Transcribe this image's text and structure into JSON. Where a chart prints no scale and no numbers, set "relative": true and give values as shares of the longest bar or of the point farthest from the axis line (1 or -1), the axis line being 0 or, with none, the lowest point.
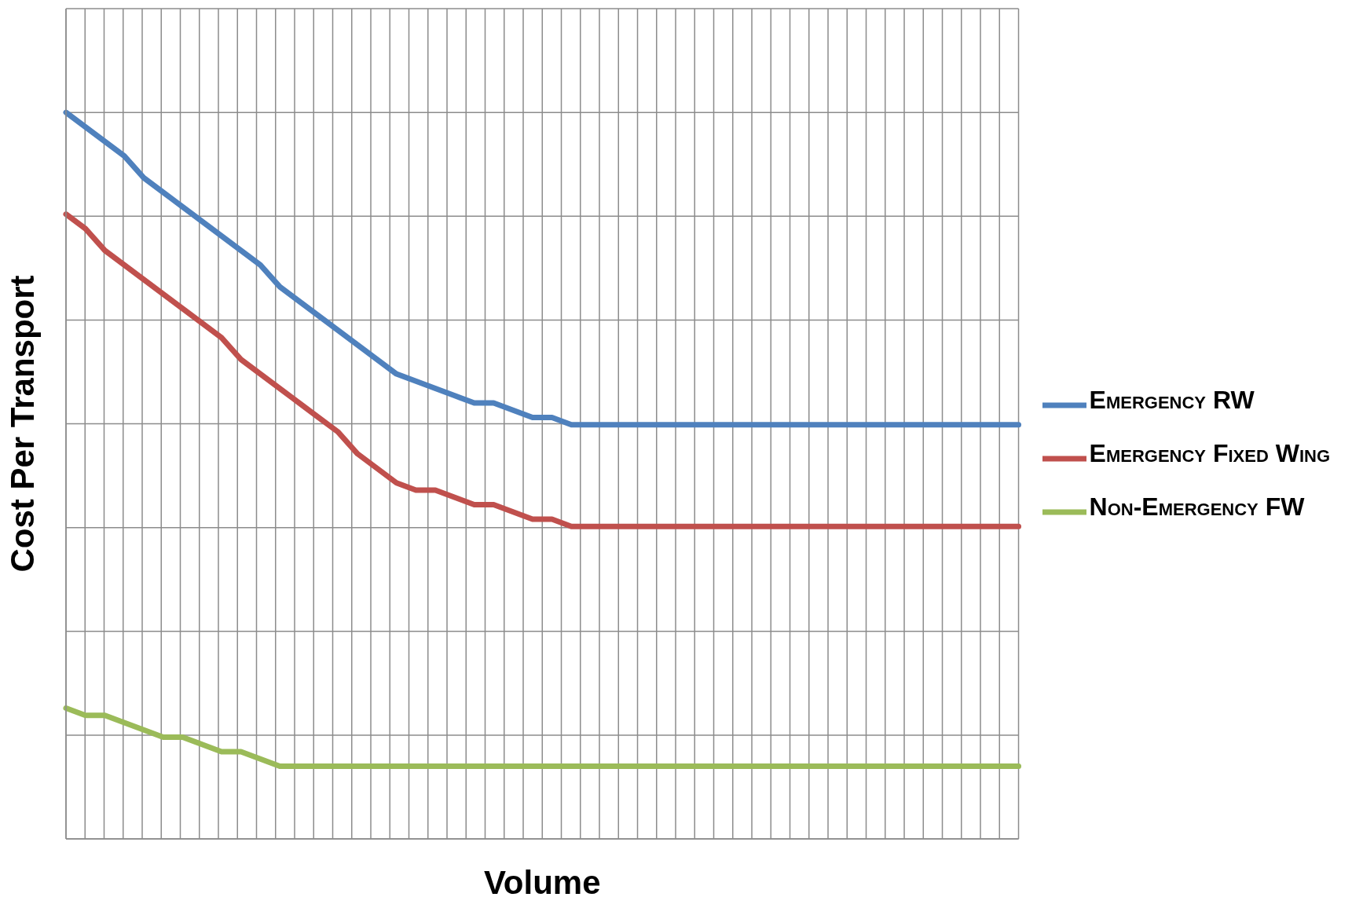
{
  "chart_data": {
    "type": "line",
    "xlabel": "Volume",
    "ylabel": "Cost Per Transport",
    "relative": true,
    "grid": true,
    "legend": "right",
    "marker": "none",
    "line_style": "solid",
    "categories": [
      null,
      null,
      null,
      null,
      null,
      null,
      null,
      null,
      null,
      null,
      null,
      null,
      null,
      null,
      null,
      null,
      null,
      null,
      null,
      null,
      null,
      null,
      null,
      null,
      null,
      null,
      null,
      null,
      null,
      null,
      null,
      null,
      null,
      null,
      null,
      null,
      null,
      null,
      null,
      null,
      null,
      null,
      null,
      null,
      null,
      null,
      null,
      null,
      null,
      null
    ],
    "series": [
      {
        "name": "Emergency RW",
        "color": "#4f81bd",
        "values": [
          1,
          0.98,
          0.96,
          0.94,
          0.91,
          0.89,
          0.87,
          0.85,
          0.83,
          0.81,
          0.79,
          0.76,
          0.74,
          0.72,
          0.7,
          0.68,
          0.66,
          0.64,
          0.63,
          0.62,
          0.61,
          0.6,
          0.6,
          0.59,
          0.58,
          0.58,
          0.57,
          0.57,
          0.57,
          0.57,
          0.57,
          0.57,
          0.57,
          0.57,
          0.57,
          0.57,
          0.57,
          0.57,
          0.57,
          0.57,
          0.57,
          0.57,
          0.57,
          0.57,
          0.57,
          0.57,
          0.57,
          0.57,
          0.57,
          0.57
        ]
      },
      {
        "name": "Emergency Fixed Wing",
        "color": "#c0504d",
        "values": [
          0.86,
          0.84,
          0.81,
          0.79,
          0.77,
          0.75,
          0.73,
          0.71,
          0.69,
          0.66,
          0.64,
          0.62,
          0.6,
          0.58,
          0.56,
          0.53,
          0.51,
          0.49,
          0.48,
          0.48,
          0.47,
          0.46,
          0.46,
          0.45,
          0.44,
          0.44,
          0.43,
          0.43,
          0.43,
          0.43,
          0.43,
          0.43,
          0.43,
          0.43,
          0.43,
          0.43,
          0.43,
          0.43,
          0.43,
          0.43,
          0.43,
          0.43,
          0.43,
          0.43,
          0.43,
          0.43,
          0.43,
          0.43,
          0.43,
          0.43
        ]
      },
      {
        "name": "Non-Emergency FW",
        "color": "#9bbb59",
        "values": [
          0.18,
          0.17,
          0.17,
          0.16,
          0.15,
          0.14,
          0.14,
          0.13,
          0.12,
          0.12,
          0.11,
          0.1,
          0.1,
          0.1,
          0.1,
          0.1,
          0.1,
          0.1,
          0.1,
          0.1,
          0.1,
          0.1,
          0.1,
          0.1,
          0.1,
          0.1,
          0.1,
          0.1,
          0.1,
          0.1,
          0.1,
          0.1,
          0.1,
          0.1,
          0.1,
          0.1,
          0.1,
          0.1,
          0.1,
          0.1,
          0.1,
          0.1,
          0.1,
          0.1,
          0.1,
          0.1,
          0.1,
          0.1,
          0.1,
          0.1
        ]
      }
    ]
  }
}
